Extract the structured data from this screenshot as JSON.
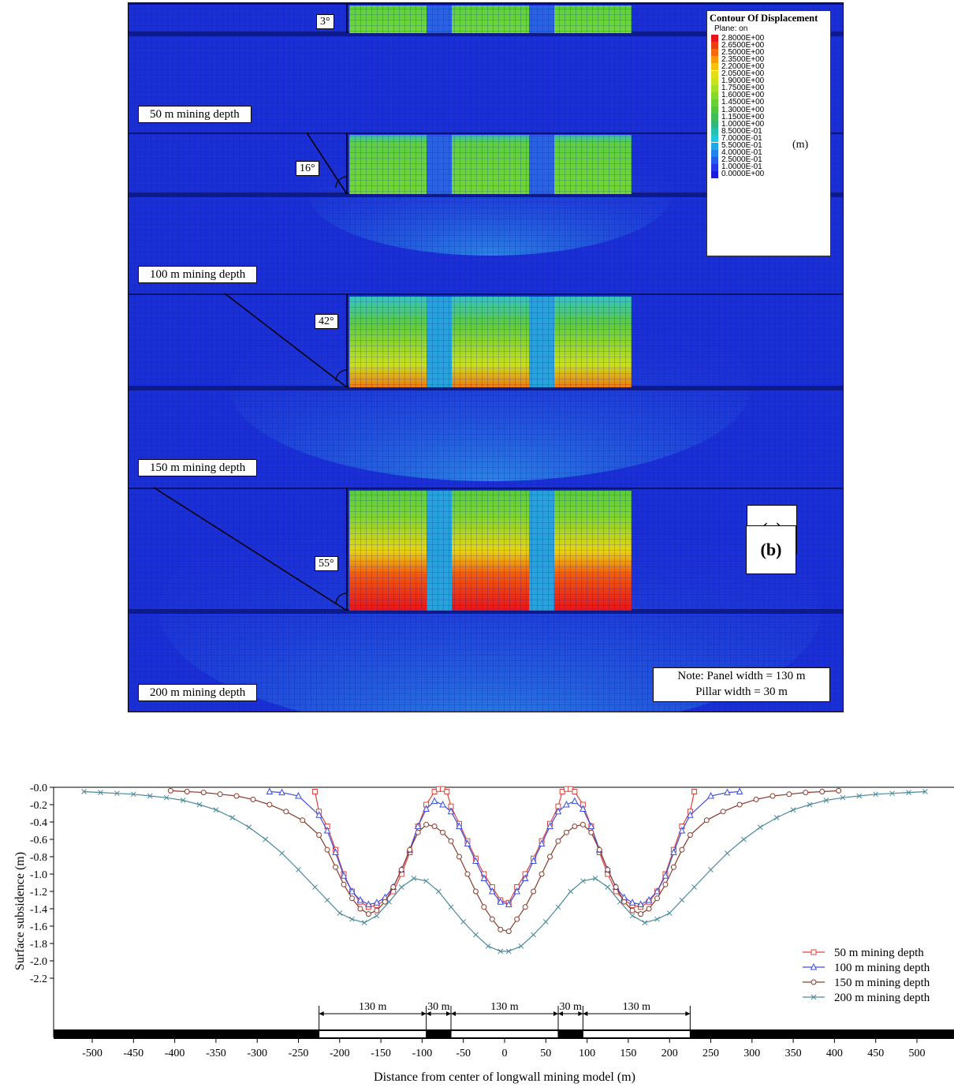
{
  "panel_a": {
    "tag": "(a)",
    "legend": {
      "title": "Contour Of Displacement",
      "plane": "Plane: on",
      "unit": "(m)",
      "values": [
        "2.8000E+00",
        "2.6500E+00",
        "2.5000E+00",
        "2.3500E+00",
        "2.2000E+00",
        "2.0500E+00",
        "1.9000E+00",
        "1.7500E+00",
        "1.6000E+00",
        "1.4500E+00",
        "1.3000E+00",
        "1.1500E+00",
        "1.0000E+00",
        "8.5000E-01",
        "7.0000E-01",
        "5.5000E-01",
        "4.0000E-01",
        "2.5000E-01",
        "1.0000E-01",
        "0.0000E+00"
      ],
      "colors": [
        "#e8141a",
        "#f03a10",
        "#f56a0c",
        "#f89a0a",
        "#f8c20c",
        "#e6de14",
        "#c6e41c",
        "#a6e024",
        "#86d82c",
        "#6acf34",
        "#52c63c",
        "#3ebe54",
        "#30b87a",
        "#26c0b0",
        "#20c8dc",
        "#1ea8e8",
        "#2282ec",
        "#265cee",
        "#2438e8",
        "#1a1ae0"
      ]
    },
    "depth_labels": [
      "50 m mining depth",
      "100 m mining depth",
      "150 m mining depth",
      "200 m mining depth"
    ],
    "angles": [
      "3°",
      "16°",
      "42°",
      "55°"
    ],
    "note": {
      "line1": "Note: Panel width = 130 m",
      "line2": "Pillar width = 30 m"
    },
    "colors": {
      "background": "#1b2fd6",
      "mesh": "#0e1a9a"
    }
  },
  "chart_data": {
    "type": "line",
    "tag": "(b)",
    "xlabel": "Distance from center of longwall mining model (m)",
    "ylabel": "Surface subsidence (m)",
    "xlim": [
      -510,
      510
    ],
    "ylim": [
      -2.2,
      0.0
    ],
    "xticks": [
      -500,
      -450,
      -400,
      -350,
      -300,
      -250,
      -200,
      -150,
      -100,
      -50,
      0,
      50,
      100,
      150,
      200,
      250,
      300,
      350,
      400,
      450,
      500
    ],
    "xtick_labels": [
      "-500",
      "-450",
      "-400",
      "-350",
      "-300",
      "-250",
      "-200",
      "-150",
      "-100",
      "-50",
      "0",
      "50",
      "100",
      "150",
      "200",
      "250",
      "300",
      "350",
      "400",
      "450",
      "500"
    ],
    "yticks": [
      -0.0,
      -0.2,
      -0.4,
      -0.6,
      -0.8,
      -1.0,
      -1.2,
      -1.4,
      -1.6,
      -1.8,
      -2.0,
      -2.2
    ],
    "ytick_labels": [
      "-0.0",
      "-0.2",
      "-0.4",
      "-0.6",
      "-0.8",
      "-1.0",
      "-1.2",
      "-1.4",
      "-1.6",
      "-1.8",
      "-2.0",
      "-2.2"
    ],
    "grid": false,
    "legend_position": "bottom-right",
    "dimension_labels": [
      "130 m",
      "30 m",
      "130 m",
      "30 m",
      "130 m"
    ],
    "dimension_spans": [
      [
        -225,
        -95
      ],
      [
        -95,
        -65
      ],
      [
        -65,
        65
      ],
      [
        65,
        95
      ],
      [
        95,
        225
      ]
    ],
    "series": [
      {
        "name": "50 m mining depth",
        "color": "#e0403a",
        "marker": "square",
        "x": [
          -230,
          -225,
          -215,
          -205,
          -195,
          -185,
          -175,
          -165,
          -155,
          -145,
          -135,
          -125,
          -115,
          -105,
          -95,
          -85,
          -80,
          -75,
          -70,
          -65,
          -55,
          -45,
          -35,
          -25,
          -15,
          -5,
          5,
          15,
          25,
          35,
          45,
          55,
          65,
          70,
          75,
          80,
          85,
          95,
          105,
          115,
          125,
          135,
          145,
          155,
          165,
          175,
          185,
          195,
          205,
          215,
          225,
          230
        ],
        "y": [
          -0.05,
          -0.28,
          -0.45,
          -0.72,
          -1.0,
          -1.2,
          -1.32,
          -1.38,
          -1.36,
          -1.3,
          -1.2,
          -1.0,
          -0.75,
          -0.45,
          -0.2,
          -0.05,
          -0.02,
          -0.02,
          -0.05,
          -0.22,
          -0.42,
          -0.62,
          -0.82,
          -1.0,
          -1.15,
          -1.3,
          -1.33,
          -1.15,
          -1.0,
          -0.82,
          -0.62,
          -0.42,
          -0.22,
          -0.05,
          -0.02,
          -0.02,
          -0.05,
          -0.2,
          -0.45,
          -0.75,
          -1.0,
          -1.2,
          -1.3,
          -1.36,
          -1.38,
          -1.32,
          -1.2,
          -1.0,
          -0.72,
          -0.45,
          -0.28,
          -0.05
        ]
      },
      {
        "name": "100 m mining depth",
        "color": "#3c4ee0",
        "marker": "triangle",
        "x": [
          -285,
          -270,
          -250,
          -225,
          -215,
          -205,
          -195,
          -185,
          -175,
          -165,
          -155,
          -145,
          -135,
          -125,
          -115,
          -105,
          -95,
          -85,
          -75,
          -65,
          -55,
          -45,
          -35,
          -25,
          -15,
          -5,
          5,
          15,
          25,
          35,
          45,
          55,
          65,
          75,
          85,
          95,
          105,
          115,
          125,
          135,
          145,
          155,
          165,
          175,
          185,
          195,
          205,
          215,
          225,
          250,
          270,
          285
        ],
        "y": [
          -0.05,
          -0.06,
          -0.1,
          -0.32,
          -0.5,
          -0.75,
          -1.02,
          -1.2,
          -1.3,
          -1.35,
          -1.33,
          -1.27,
          -1.15,
          -0.95,
          -0.72,
          -0.45,
          -0.25,
          -0.16,
          -0.2,
          -0.28,
          -0.45,
          -0.65,
          -0.85,
          -1.05,
          -1.2,
          -1.32,
          -1.35,
          -1.2,
          -1.05,
          -0.85,
          -0.65,
          -0.45,
          -0.28,
          -0.2,
          -0.16,
          -0.25,
          -0.45,
          -0.72,
          -0.95,
          -1.15,
          -1.27,
          -1.33,
          -1.35,
          -1.3,
          -1.2,
          -1.02,
          -0.75,
          -0.5,
          -0.32,
          -0.1,
          -0.06,
          -0.05
        ]
      },
      {
        "name": "150 m mining depth",
        "color": "#8a3a2a",
        "marker": "circle",
        "x": [
          -405,
          -385,
          -365,
          -345,
          -325,
          -305,
          -285,
          -265,
          -245,
          -225,
          -215,
          -205,
          -195,
          -185,
          -175,
          -165,
          -155,
          -145,
          -135,
          -125,
          -115,
          -105,
          -95,
          -85,
          -75,
          -65,
          -55,
          -45,
          -35,
          -25,
          -15,
          -5,
          5,
          15,
          25,
          35,
          45,
          55,
          65,
          75,
          85,
          95,
          105,
          115,
          125,
          135,
          145,
          155,
          165,
          175,
          185,
          195,
          205,
          215,
          225,
          245,
          265,
          285,
          305,
          325,
          345,
          365,
          385,
          405
        ],
        "y": [
          -0.04,
          -0.05,
          -0.06,
          -0.08,
          -0.1,
          -0.14,
          -0.2,
          -0.28,
          -0.38,
          -0.55,
          -0.72,
          -0.92,
          -1.12,
          -1.28,
          -1.4,
          -1.46,
          -1.42,
          -1.32,
          -1.15,
          -0.95,
          -0.72,
          -0.52,
          -0.43,
          -0.45,
          -0.52,
          -0.62,
          -0.8,
          -1.0,
          -1.2,
          -1.38,
          -1.52,
          -1.64,
          -1.66,
          -1.52,
          -1.38,
          -1.2,
          -1.0,
          -0.8,
          -0.62,
          -0.52,
          -0.45,
          -0.43,
          -0.52,
          -0.72,
          -0.95,
          -1.15,
          -1.32,
          -1.42,
          -1.46,
          -1.4,
          -1.28,
          -1.12,
          -0.92,
          -0.72,
          -0.55,
          -0.38,
          -0.28,
          -0.2,
          -0.14,
          -0.1,
          -0.08,
          -0.06,
          -0.05,
          -0.04
        ]
      },
      {
        "name": "200 m mining depth",
        "color": "#4a8a9a",
        "marker": "x",
        "x": [
          -510,
          -490,
          -470,
          -450,
          -430,
          -410,
          -390,
          -370,
          -350,
          -330,
          -310,
          -290,
          -270,
          -250,
          -230,
          -215,
          -200,
          -185,
          -170,
          -155,
          -140,
          -125,
          -110,
          -95,
          -80,
          -65,
          -50,
          -35,
          -20,
          -5,
          5,
          20,
          35,
          50,
          65,
          80,
          95,
          110,
          125,
          140,
          155,
          170,
          185,
          200,
          215,
          230,
          250,
          270,
          290,
          310,
          330,
          350,
          370,
          390,
          410,
          430,
          450,
          470,
          490,
          510
        ],
        "y": [
          -0.05,
          -0.06,
          -0.07,
          -0.08,
          -0.1,
          -0.12,
          -0.15,
          -0.2,
          -0.26,
          -0.35,
          -0.46,
          -0.6,
          -0.76,
          -0.95,
          -1.15,
          -1.3,
          -1.45,
          -1.52,
          -1.56,
          -1.48,
          -1.32,
          -1.15,
          -1.05,
          -1.08,
          -1.2,
          -1.38,
          -1.55,
          -1.7,
          -1.83,
          -1.89,
          -1.89,
          -1.83,
          -1.7,
          -1.55,
          -1.38,
          -1.2,
          -1.08,
          -1.05,
          -1.15,
          -1.32,
          -1.48,
          -1.56,
          -1.52,
          -1.45,
          -1.3,
          -1.15,
          -0.95,
          -0.76,
          -0.6,
          -0.46,
          -0.35,
          -0.26,
          -0.2,
          -0.15,
          -0.12,
          -0.1,
          -0.08,
          -0.07,
          -0.06,
          -0.05
        ]
      }
    ]
  }
}
